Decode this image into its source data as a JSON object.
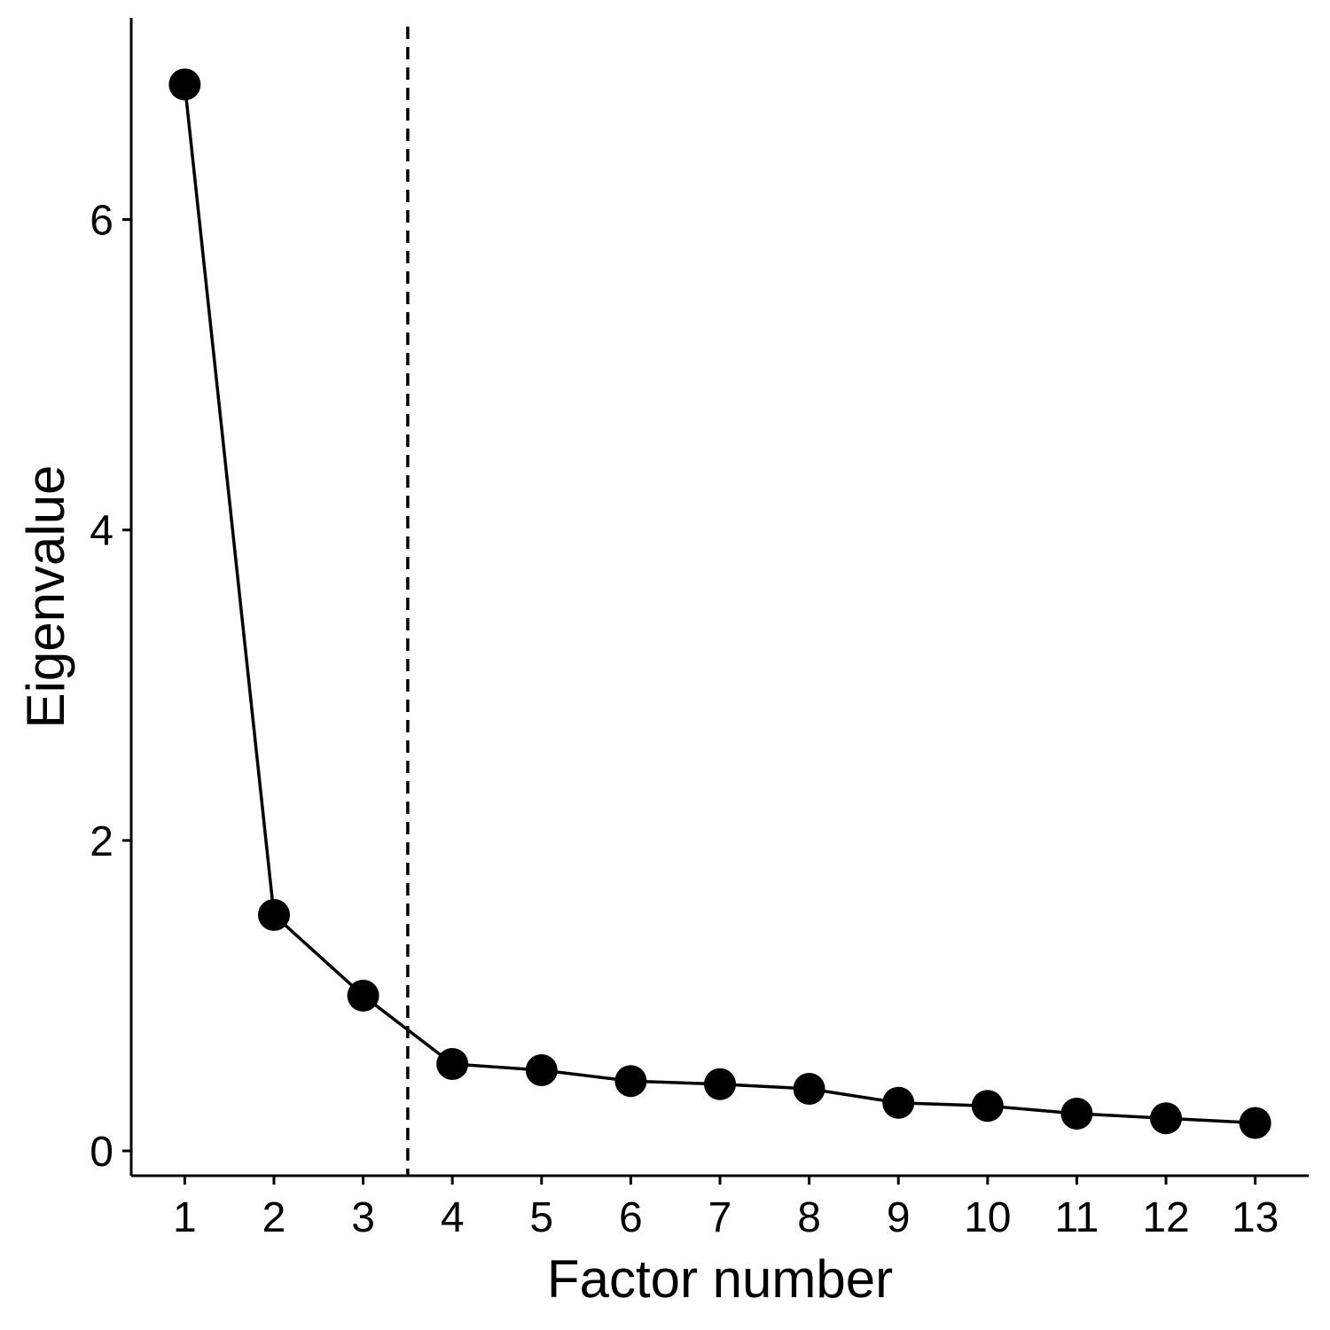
{
  "chart_data": {
    "type": "line",
    "title": "",
    "xlabel": "Factor number",
    "ylabel": "Eigenvalue",
    "x": [
      1,
      2,
      3,
      4,
      5,
      6,
      7,
      8,
      9,
      10,
      11,
      12,
      13
    ],
    "series": [
      {
        "values": [
          6.87,
          1.52,
          1.0,
          0.56,
          0.52,
          0.45,
          0.43,
          0.4,
          0.31,
          0.29,
          0.24,
          0.21,
          0.18
        ]
      }
    ],
    "xlim": [
      0.4,
      13.6
    ],
    "ylim": [
      -0.16,
      7.3
    ],
    "yticks": [
      0,
      2,
      4,
      6
    ],
    "xticks": [
      1,
      2,
      3,
      4,
      5,
      6,
      7,
      8,
      9,
      10,
      11,
      12,
      13
    ],
    "reference_line": {
      "orientation": "vertical",
      "x": 3.5,
      "style": "dashed"
    },
    "grid": false,
    "legend": "none",
    "colors": {
      "line": "#000000",
      "points": "#000000",
      "axis": "#000000",
      "reference_line": "#000000"
    }
  }
}
